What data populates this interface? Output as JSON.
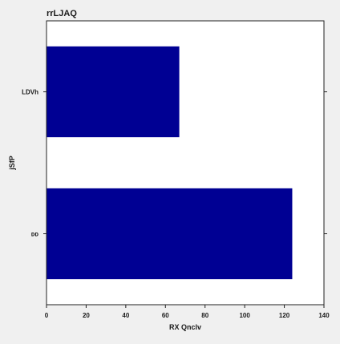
{
  "colors": {
    "figure_background": "#f0f0f0",
    "plot_background": "#ffffff",
    "bar": "#000093",
    "axis": "#222222"
  },
  "chart_data": {
    "type": "bar",
    "orientation": "horizontal",
    "title": "rrLJAQ",
    "xlabel": "RX Qnclv",
    "ylabel": "jSfP",
    "categories": [
      "ᴅᴅ",
      "LDVh"
    ],
    "values": [
      124,
      67
    ],
    "xlim": [
      0,
      140
    ],
    "xticks": [
      0,
      20,
      40,
      60,
      80,
      100,
      120,
      140
    ],
    "grid": false,
    "legend": "none"
  }
}
